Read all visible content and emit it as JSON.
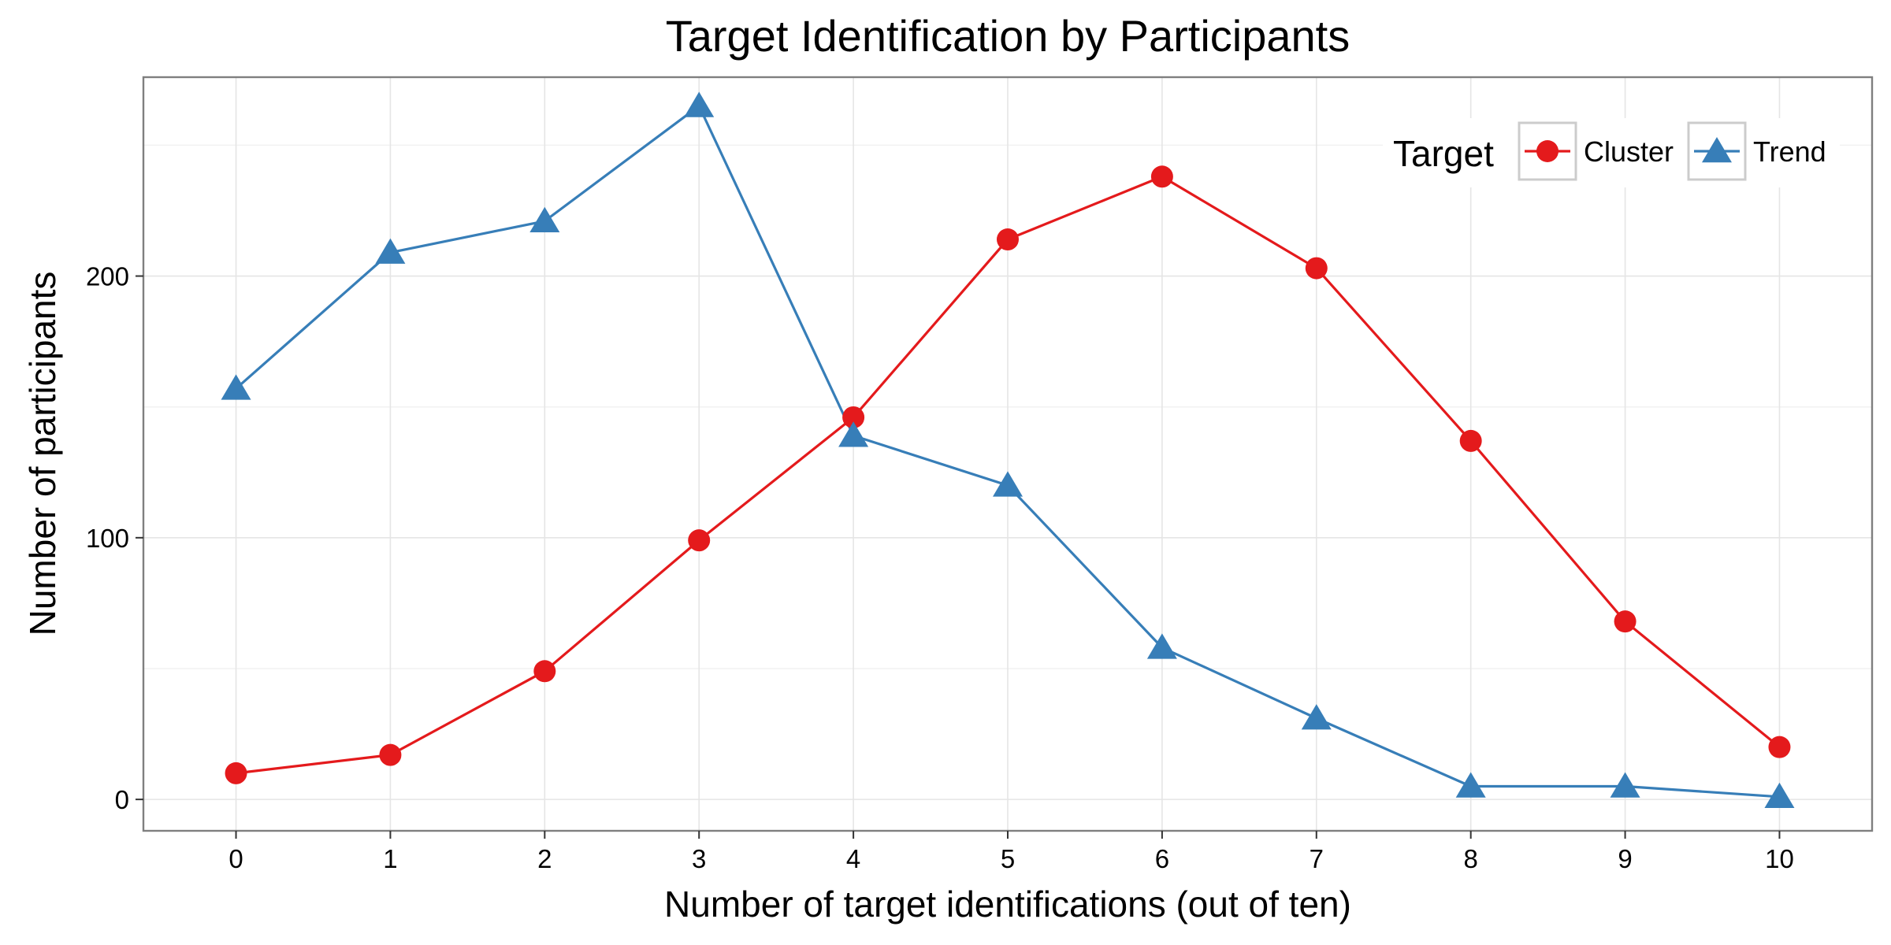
{
  "chart_data": {
    "type": "line",
    "title": "Target Identification by Participants",
    "xlabel": "Number of target identifications (out of ten)",
    "ylabel": "Number of participants",
    "x": [
      0,
      1,
      2,
      3,
      4,
      5,
      6,
      7,
      8,
      9,
      10
    ],
    "xlim": [
      -0.6,
      10.6
    ],
    "ylim": [
      -12,
      276
    ],
    "x_ticks": [
      "0",
      "1",
      "2",
      "3",
      "4",
      "5",
      "6",
      "7",
      "8",
      "9",
      "10"
    ],
    "y_ticks": [
      0,
      100,
      200
    ],
    "y_tick_labels": [
      "0",
      "100",
      "200"
    ],
    "grid": true,
    "legend": {
      "title": "Target",
      "position": "top-right"
    },
    "series": [
      {
        "name": "Cluster",
        "color": "#e41a1c",
        "marker": "circle",
        "values": [
          10,
          17,
          49,
          99,
          146,
          214,
          238,
          203,
          137,
          68,
          20
        ]
      },
      {
        "name": "Trend",
        "color": "#377eb8",
        "marker": "triangle",
        "values": [
          157,
          209,
          221,
          265,
          139,
          120,
          58,
          31,
          5,
          5,
          1
        ]
      }
    ]
  }
}
